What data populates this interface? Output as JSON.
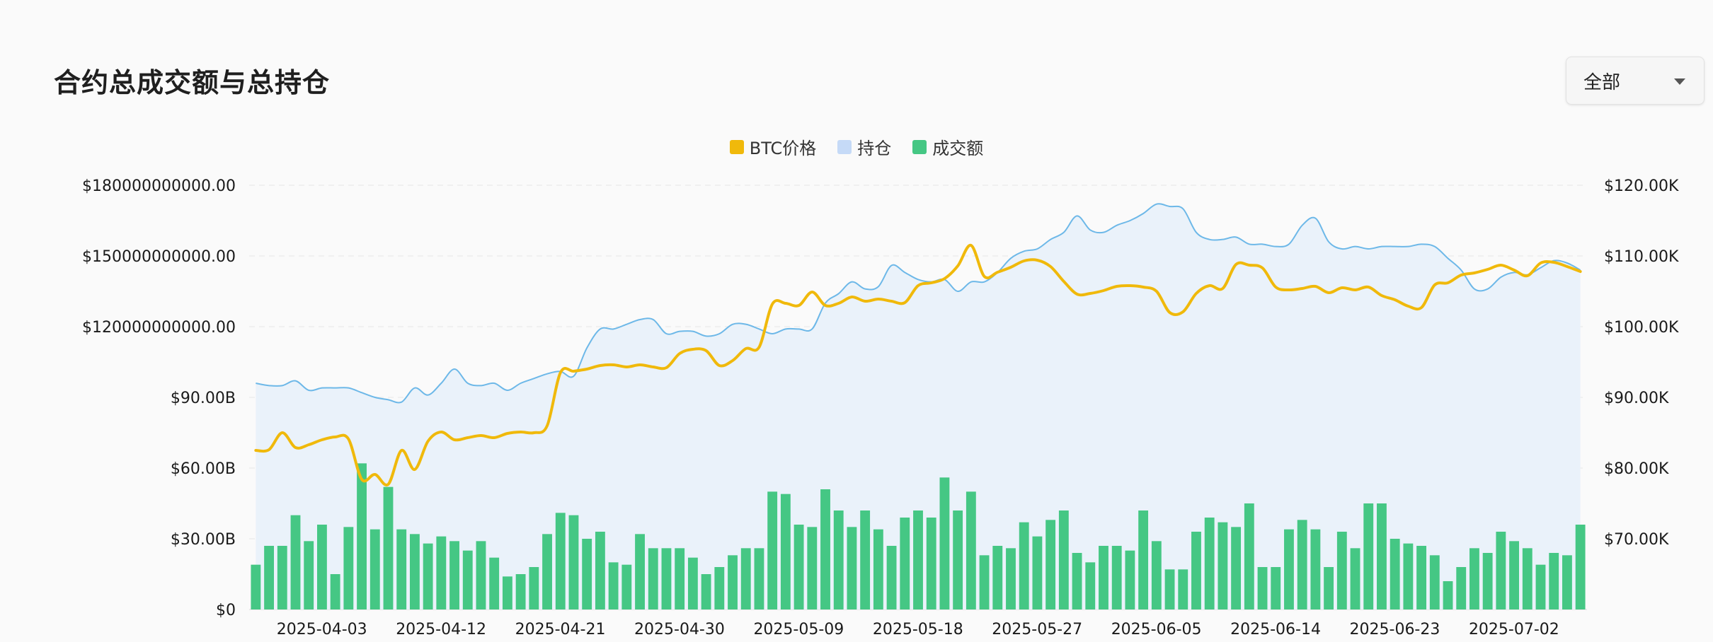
{
  "title": "合约总成交额与总持仓",
  "range_select": {
    "value": "全部"
  },
  "colors": {
    "price": "#f0b90b",
    "open_interest_line": "#6db8e8",
    "open_interest_fill": "#eaf2fa",
    "volume": "#45c784",
    "grid": "#ececec"
  },
  "icons": {
    "range_caret": "chevron-down-icon"
  },
  "chart_data": {
    "type": "combo",
    "legend": [
      "BTC价格",
      "持仓",
      "成交额"
    ],
    "legend_position": "top-center",
    "grid": true,
    "y_left": {
      "min": 0,
      "max": 180000000000,
      "ticks": [
        "$0",
        "$30.00B",
        "$60.00B",
        "$90.00B",
        "$120000000000.00",
        "$150000000000.00",
        "$180000000000.00"
      ]
    },
    "y_right": {
      "min": 60000,
      "max": 120000,
      "ticks": [
        "$70.00K",
        "$80.00K",
        "$90.00K",
        "$100.00K",
        "$110.00K",
        "$120.00K"
      ],
      "tick_values": [
        70000,
        80000,
        90000,
        100000,
        110000,
        120000
      ]
    },
    "x_ticks": [
      "2025-04-03",
      "2025-04-12",
      "2025-04-21",
      "2025-04-30",
      "2025-05-09",
      "2025-05-18",
      "2025-05-27",
      "2025-06-05",
      "2025-06-14",
      "2025-06-23",
      "2025-07-02"
    ],
    "x_start": "2025-04-01",
    "days": 101,
    "series": [
      {
        "name": "成交额",
        "type": "bar",
        "axis": "left",
        "values": [
          19,
          27,
          27,
          40,
          29,
          36,
          15,
          35,
          62,
          34,
          52,
          34,
          32,
          28,
          31,
          29,
          25,
          29,
          22,
          14,
          15,
          18,
          32,
          41,
          40,
          30,
          33,
          20,
          19,
          32,
          26,
          26,
          26,
          22,
          15,
          18,
          23,
          26,
          26,
          50,
          49,
          36,
          35,
          51,
          42,
          35,
          42,
          34,
          27,
          39,
          42,
          39,
          56,
          42,
          50,
          23,
          27,
          26,
          37,
          31,
          38,
          42,
          24,
          20,
          27,
          27,
          25,
          42,
          29,
          17,
          17,
          33,
          39,
          37,
          35,
          45,
          18,
          18,
          34,
          38,
          34,
          18,
          33,
          26,
          45,
          45,
          30,
          28,
          27,
          23,
          12,
          18,
          26,
          24,
          33,
          29,
          26,
          19,
          24,
          23,
          36
        ]
      },
      {
        "name": "持仓",
        "type": "area",
        "axis": "left",
        "values": [
          96,
          95,
          95,
          97,
          93,
          94,
          94,
          94,
          92,
          90,
          89,
          88,
          94,
          91,
          96,
          102,
          96,
          95,
          96,
          93,
          96,
          98,
          100,
          101,
          99,
          111,
          119,
          119,
          121,
          123,
          123,
          117,
          118,
          118,
          116,
          117,
          121,
          121,
          119,
          117,
          119,
          119,
          119,
          130,
          134,
          139,
          136,
          137,
          146,
          143,
          140,
          139,
          140,
          135,
          139,
          139,
          143,
          149,
          152,
          153,
          157,
          160,
          167,
          161,
          160,
          163,
          165,
          168,
          172,
          171,
          170,
          160,
          157,
          157,
          158,
          155,
          155,
          154,
          155,
          163,
          166,
          156,
          153,
          154,
          153,
          154,
          154,
          154,
          155,
          154,
          149,
          144,
          136,
          136,
          141,
          143,
          142,
          145,
          148,
          147,
          144
        ]
      },
      {
        "name": "BTC价格",
        "type": "line",
        "axis": "right",
        "values": [
          82500,
          82600,
          85000,
          82900,
          83300,
          84000,
          84400,
          84100,
          78400,
          79100,
          77700,
          82500,
          79800,
          83800,
          85100,
          84000,
          84300,
          84600,
          84300,
          84900,
          85100,
          85000,
          86000,
          93500,
          93700,
          94000,
          94500,
          94600,
          94300,
          94600,
          94300,
          94200,
          96200,
          96800,
          96600,
          94500,
          95200,
          96900,
          97100,
          103200,
          103300,
          103000,
          104900,
          103000,
          103300,
          104200,
          103600,
          103900,
          103600,
          103400,
          105800,
          106200,
          106800,
          108600,
          111500,
          107100,
          107700,
          108400,
          109300,
          109400,
          108500,
          106400,
          104600,
          104700,
          105100,
          105700,
          105800,
          105600,
          105000,
          102000,
          102100,
          104700,
          105800,
          105400,
          108800,
          108700,
          108300,
          105600,
          105200,
          105400,
          105700,
          104800,
          105500,
          105200,
          105600,
          104400,
          103800,
          102900,
          102700,
          105900,
          106200,
          107300,
          107600,
          108100,
          108700,
          108000,
          107200,
          109000,
          109100,
          108500,
          107800
        ]
      }
    ]
  }
}
